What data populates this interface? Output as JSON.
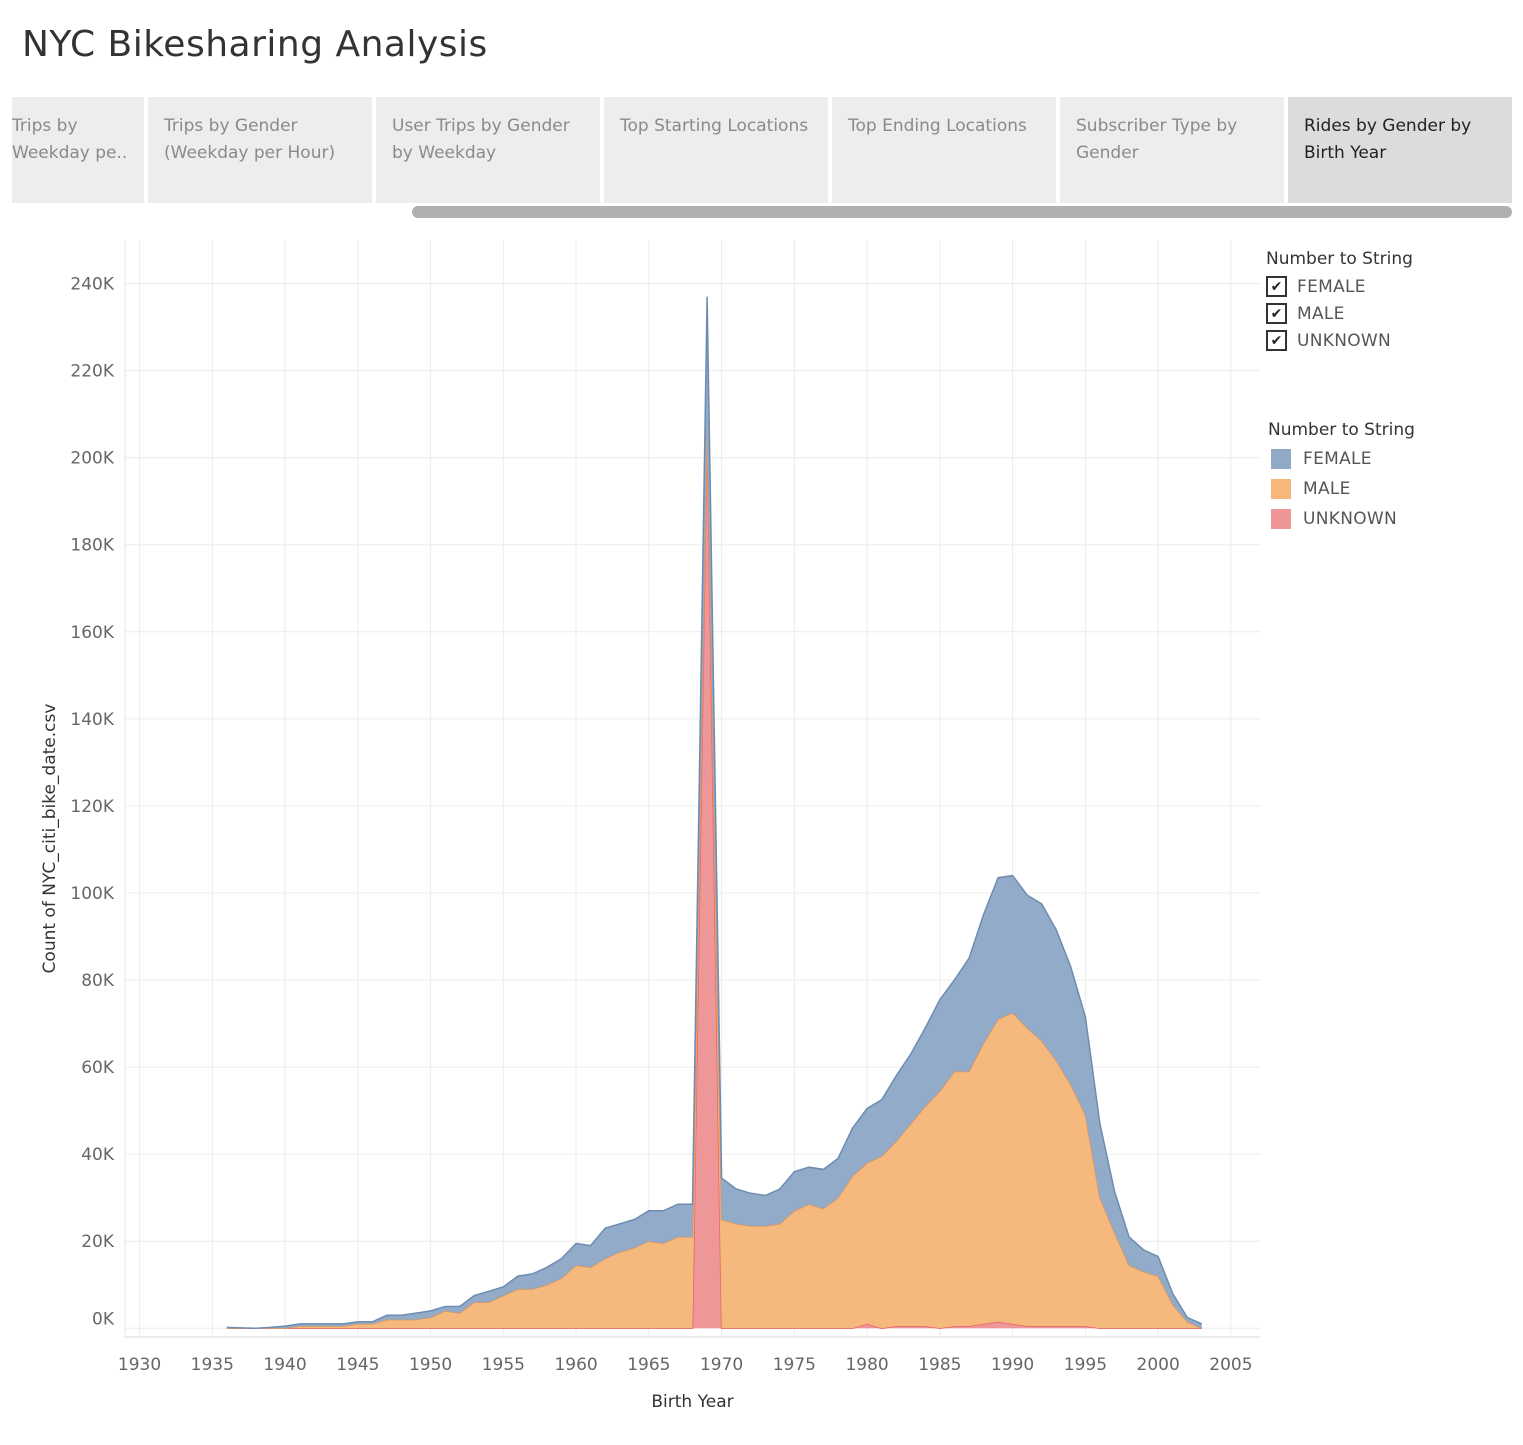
{
  "page": {
    "title": "NYC Bikesharing Analysis"
  },
  "tabs": [
    {
      "label": "Trips by Weekday pe..",
      "active": false
    },
    {
      "label": "Trips by Gender (Weekday per Hour)",
      "active": false
    },
    {
      "label": "User Trips by Gender by Weekday",
      "active": false
    },
    {
      "label": "Top Starting Locations",
      "active": false
    },
    {
      "label": "Top Ending Locations",
      "active": false
    },
    {
      "label": "Subscriber Type by Gender",
      "active": false
    },
    {
      "label": "Rides by Gender by Birth Year",
      "active": true
    }
  ],
  "filter_legend": {
    "title": "Number to String",
    "items": [
      {
        "label": "FEMALE",
        "checked": true
      },
      {
        "label": "MALE",
        "checked": true
      },
      {
        "label": "UNKNOWN",
        "checked": true
      }
    ],
    "check_glyph": "✔"
  },
  "color_legend": {
    "title": "Number to String",
    "items": [
      {
        "label": "FEMALE",
        "color": "#8fa9c7"
      },
      {
        "label": "MALE",
        "color": "#f5b87a"
      },
      {
        "label": "UNKNOWN",
        "color": "#ee9597"
      }
    ]
  },
  "chart_data": {
    "type": "area",
    "stacked": true,
    "title": "",
    "xlabel": "Birth Year",
    "ylabel": "Count of NYC_citi_bike_date.csv",
    "xlim": [
      1929,
      2007
    ],
    "ylim": [
      -2000,
      250000
    ],
    "x_ticks": [
      1930,
      1935,
      1940,
      1945,
      1950,
      1955,
      1960,
      1965,
      1970,
      1975,
      1980,
      1985,
      1990,
      1995,
      2000,
      2005
    ],
    "y_ticks": [
      0,
      20000,
      40000,
      60000,
      80000,
      100000,
      120000,
      140000,
      160000,
      180000,
      200000,
      220000,
      240000
    ],
    "y_tick_labels": [
      "0K",
      "20K",
      "40K",
      "60K",
      "80K",
      "100K",
      "120K",
      "140K",
      "160K",
      "180K",
      "200K",
      "220K",
      "240K"
    ],
    "grid": true,
    "legend": "right",
    "x": [
      1936,
      1937,
      1938,
      1939,
      1940,
      1941,
      1942,
      1943,
      1944,
      1945,
      1946,
      1947,
      1948,
      1949,
      1950,
      1951,
      1952,
      1953,
      1954,
      1955,
      1956,
      1957,
      1958,
      1959,
      1960,
      1961,
      1962,
      1963,
      1964,
      1965,
      1966,
      1967,
      1968,
      1969,
      1970,
      1971,
      1972,
      1973,
      1974,
      1975,
      1976,
      1977,
      1978,
      1979,
      1980,
      1981,
      1982,
      1983,
      1984,
      1985,
      1986,
      1987,
      1988,
      1989,
      1990,
      1991,
      1992,
      1993,
      1994,
      1995,
      1996,
      1997,
      1998,
      1999,
      2000,
      2001,
      2002,
      2003
    ],
    "series": [
      {
        "name": "UNKNOWN",
        "color": "#ee9597",
        "line_color": "#e8636a",
        "values": [
          0,
          0,
          0,
          0,
          0,
          0,
          0,
          0,
          0,
          0,
          0,
          0,
          0,
          0,
          0,
          0,
          0,
          0,
          0,
          0,
          0,
          0,
          0,
          0,
          0,
          0,
          0,
          0,
          0,
          0,
          0,
          0,
          0,
          207000,
          0,
          0,
          0,
          0,
          0,
          0,
          0,
          0,
          0,
          0,
          1000,
          0,
          500,
          500,
          500,
          0,
          500,
          500,
          1000,
          1500,
          1000,
          500,
          500,
          500,
          500,
          500,
          0,
          0,
          0,
          0,
          0,
          0,
          0,
          0
        ]
      },
      {
        "name": "MALE",
        "color": "#f5b87a",
        "line_color": "#e8955a",
        "values": [
          0,
          0,
          0,
          0,
          0,
          500,
          500,
          500,
          500,
          1000,
          1000,
          2000,
          2000,
          2000,
          2500,
          4000,
          3500,
          6000,
          6000,
          7500,
          9000,
          9000,
          10000,
          11500,
          14500,
          14000,
          16000,
          17500,
          18500,
          20000,
          19500,
          21000,
          21000,
          1000,
          25000,
          24000,
          23500,
          23500,
          24000,
          27000,
          28500,
          27500,
          30000,
          35000,
          37000,
          39500,
          42500,
          46500,
          50500,
          54500,
          58500,
          58500,
          64500,
          69500,
          71500,
          68500,
          65500,
          61000,
          55500,
          48500,
          30000,
          22000,
          14500,
          13000,
          12000,
          5500,
          1500,
          0
        ]
      },
      {
        "name": "FEMALE",
        "color": "#8fa9c7",
        "line_color": "#6e8cb2",
        "values": [
          200,
          100,
          0,
          200,
          500,
          500,
          500,
          500,
          500,
          500,
          500,
          1000,
          1000,
          1500,
          1500,
          1000,
          1500,
          1500,
          2500,
          2000,
          3000,
          3500,
          4000,
          4500,
          5000,
          5000,
          7000,
          6500,
          6500,
          7000,
          7500,
          7500,
          7500,
          29000,
          9500,
          8000,
          7500,
          7000,
          8000,
          9000,
          8500,
          9000,
          9000,
          11000,
          12500,
          13000,
          15000,
          16000,
          18000,
          21000,
          21000,
          26000,
          29500,
          32500,
          31500,
          30500,
          31500,
          30000,
          27000,
          22500,
          17000,
          9500,
          6500,
          5000,
          4500,
          2500,
          1000,
          1000
        ]
      }
    ]
  }
}
